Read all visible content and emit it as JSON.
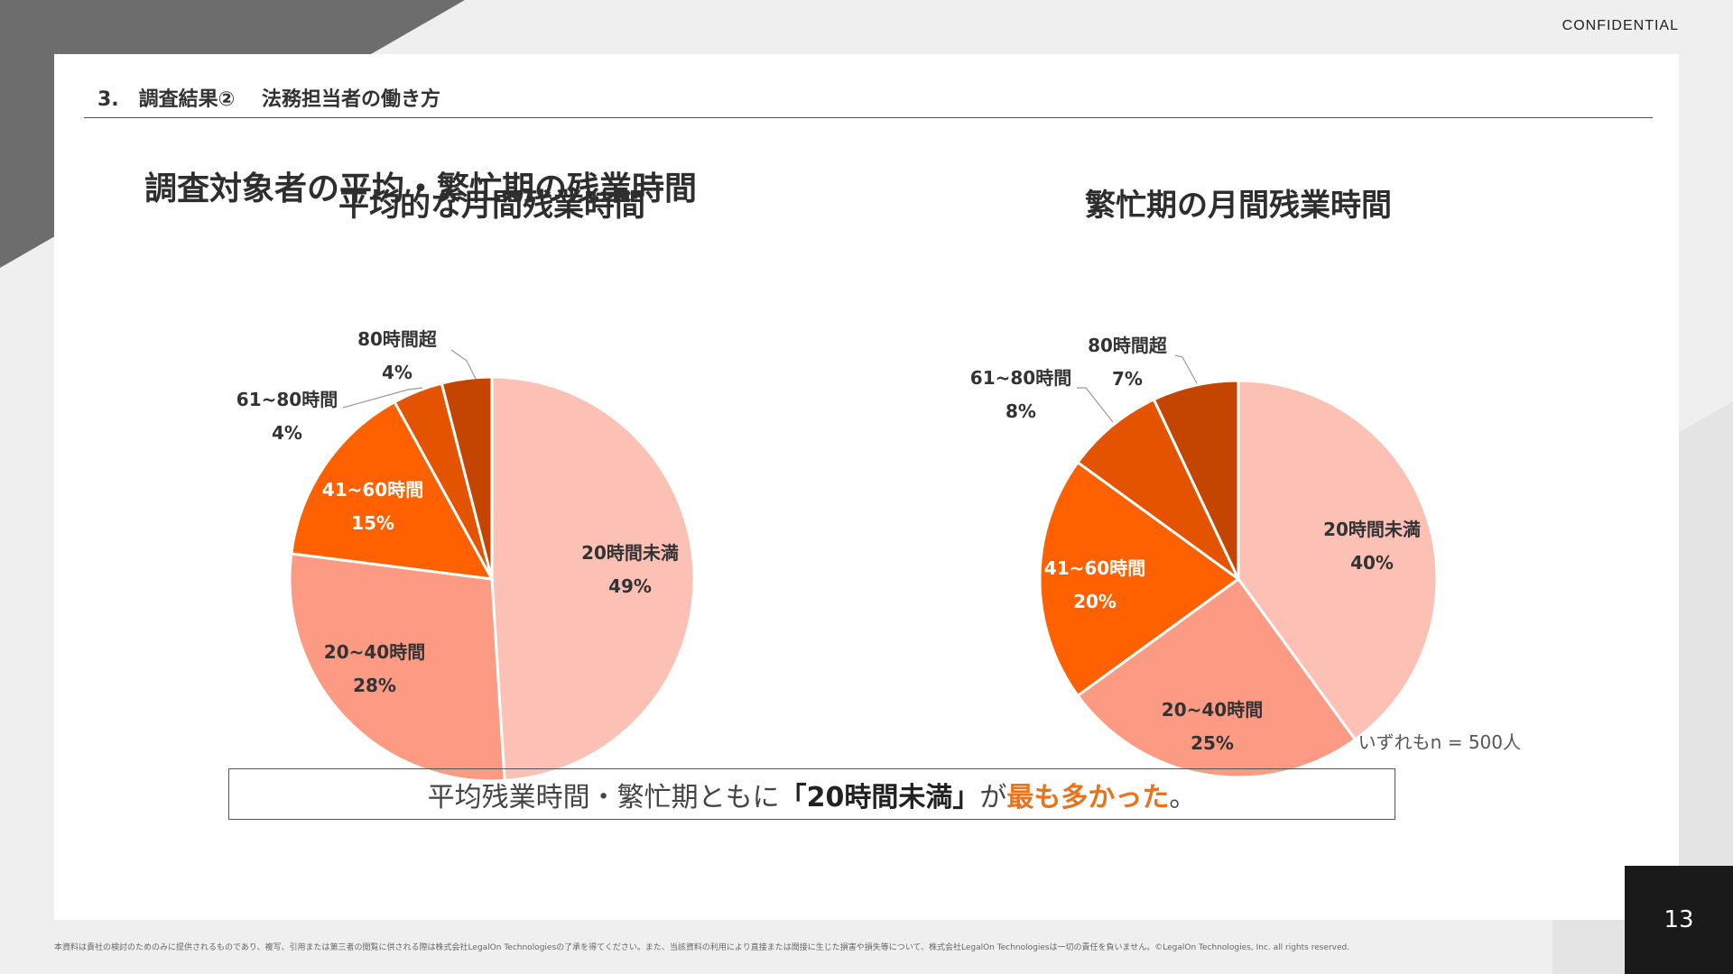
{
  "header": {
    "confidential": "CONFIDENTIAL",
    "section_title": "3.　調査結果②　 法務担当者の働き方"
  },
  "main_title": "調査対象者の平均・繁忙期の残業時間",
  "chart_data": [
    {
      "type": "pie",
      "title": "平均的な月間残業時間",
      "categories": [
        "20時間未満",
        "20~40時間",
        "41~60時間",
        "61~80時間",
        "80時間超"
      ],
      "values": [
        49,
        28,
        15,
        4,
        4
      ],
      "value_labels": [
        "49%",
        "28%",
        "15%",
        "4%",
        "4%"
      ],
      "colors": [
        "#fdc0b5",
        "#fc9a83",
        "#ff6100",
        "#e35300",
        "#c34500"
      ],
      "label_colors": [
        "#333333",
        "#333333",
        "#ffffff",
        "#333333",
        "#333333"
      ],
      "start_angle_deg": 0,
      "direction": "clockwise"
    },
    {
      "type": "pie",
      "title": "繁忙期の月間残業時間",
      "categories": [
        "20時間未満",
        "20~40時間",
        "41~60時間",
        "61~80時間",
        "80時間超"
      ],
      "values": [
        40,
        25,
        20,
        8,
        7
      ],
      "value_labels": [
        "40%",
        "25%",
        "20%",
        "8%",
        "7%"
      ],
      "colors": [
        "#fdc0b5",
        "#fc9a83",
        "#ff6100",
        "#e35300",
        "#c34500"
      ],
      "label_colors": [
        "#333333",
        "#333333",
        "#ffffff",
        "#333333",
        "#333333"
      ],
      "start_angle_deg": 0,
      "direction": "clockwise"
    }
  ],
  "note": "いずれもn = 500人",
  "callout": {
    "part1": "平均残業時間・繁忙期ともに",
    "part2": "「20時間未満」",
    "part3": "が",
    "part4": "最も多かった",
    "part5": "。"
  },
  "page_number": "13",
  "footer": "本資料は貴社の検討のためのみに提供されるものであり、複写、引用または第三者の閲覧に供される際は株式会社LegalOn Technologiesの了承を得てください。また、当該資料の利用により直接または間接に生じた損害や損失等について、株式会社LegalOn Technologiesは一切の責任を負いません。©LegalOn Technologies, Inc. all rights reserved."
}
